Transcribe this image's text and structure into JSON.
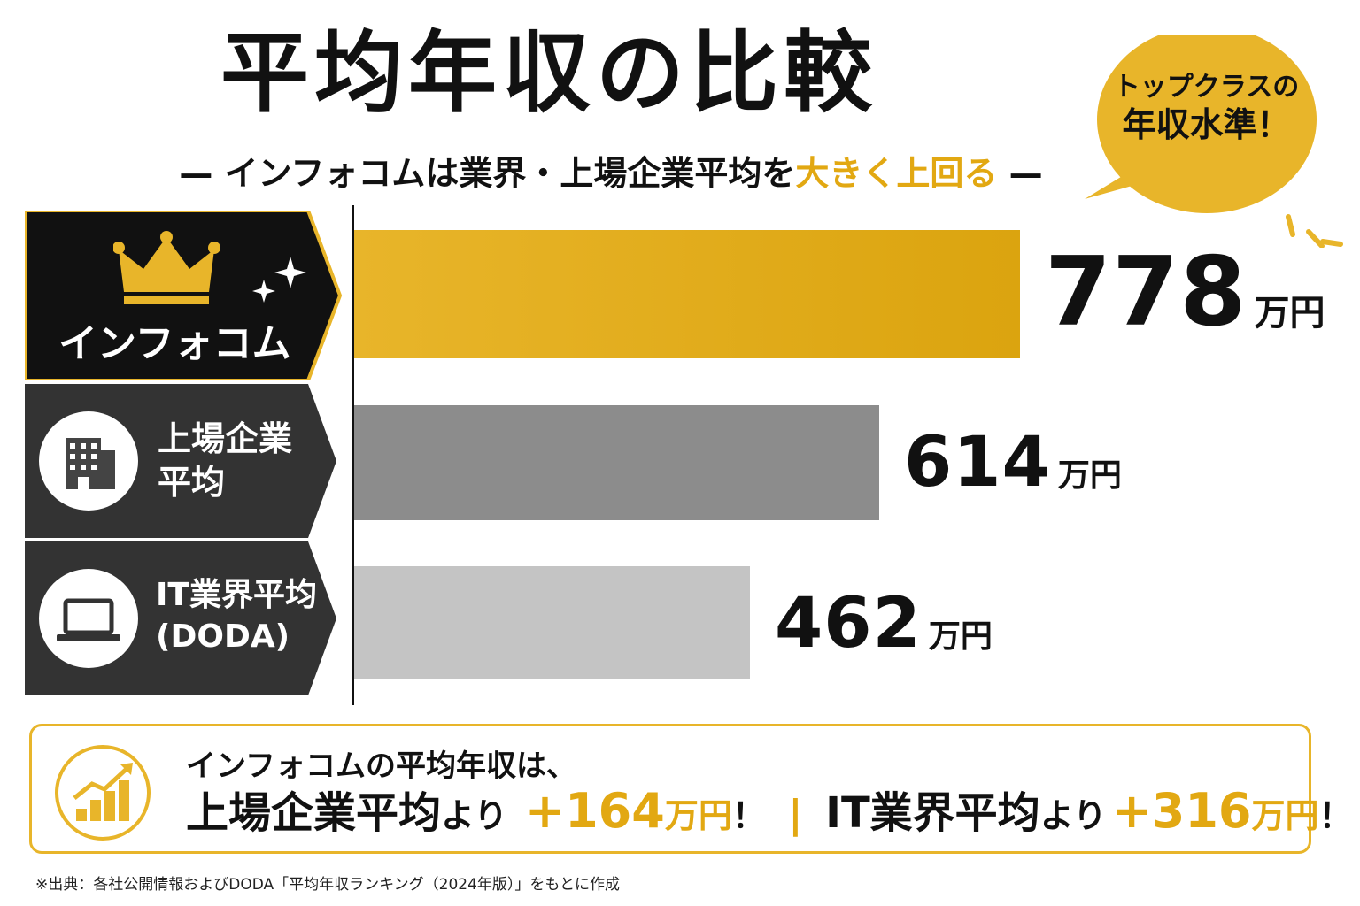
{
  "title": "平均年収の比較",
  "subtitle": {
    "dash_left": "—",
    "main": "インフォコムは業界・上場企業平均を",
    "highlight": "大きく上回る",
    "dash_right": "—"
  },
  "bubble": {
    "line1": "トップクラスの",
    "line2": "年収水準！"
  },
  "colors": {
    "gold": "#e2a812",
    "dark": "#111111",
    "gray_dark": "#333333",
    "bar_mid": "#8c8c8c",
    "bar_light": "#c4c4c4"
  },
  "rows": [
    {
      "label": "インフォコム",
      "icon": "crown-icon",
      "value": "778",
      "unit": "万円"
    },
    {
      "label_line1": "上場企業",
      "label_line2": "平均",
      "icon": "building-icon",
      "value": "614",
      "unit": "万円"
    },
    {
      "label_line1": "IT業界平均",
      "label_line2": "(DODA)",
      "icon": "laptop-icon",
      "value": "462",
      "unit": "万円"
    }
  ],
  "chart_data": {
    "type": "bar",
    "orientation": "horizontal",
    "title": "平均年収の比較",
    "categories": [
      "インフォコム",
      "上場企業平均",
      "IT業界平均 (DODA)"
    ],
    "values": [
      778,
      614,
      462
    ],
    "unit": "万円",
    "xlim": [
      0,
      778
    ]
  },
  "summary": {
    "line1": "インフォコムの平均年収は、",
    "part1_label": "上場企業平均",
    "yori": "より",
    "diff1": "+164",
    "diff_unit": "万円",
    "excl": "！",
    "separator": "|",
    "part2_label": "IT業界平均",
    "diff2": "+316"
  },
  "source": "※出典：各社公開情報およびDODA「平均年収ランキング（2024年版）」をもとに作成"
}
